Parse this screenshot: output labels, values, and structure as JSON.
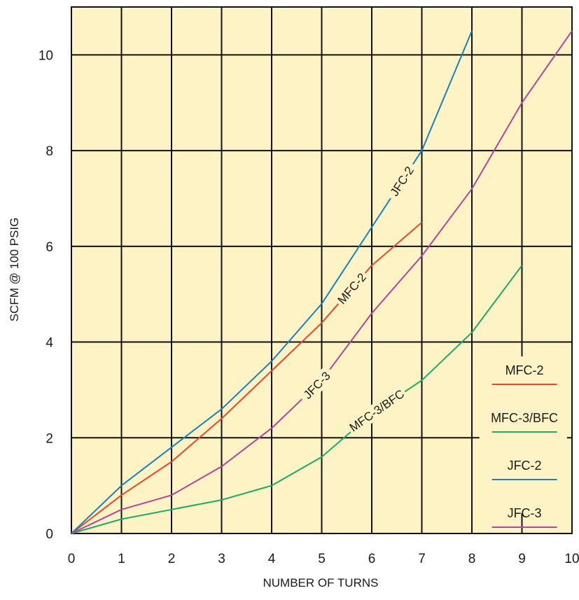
{
  "chart_data": {
    "type": "line",
    "title": "",
    "xlabel": "NUMBER OF TURNS",
    "ylabel": "SCFM @ 100 PSIG",
    "xlim": [
      0,
      10
    ],
    "ylim": [
      0,
      11
    ],
    "x_ticks": [
      "0",
      "1",
      "2",
      "3",
      "4",
      "5",
      "6",
      "7",
      "8",
      "9",
      "10"
    ],
    "y_ticks": [
      "0",
      "2",
      "4",
      "6",
      "8",
      "10"
    ],
    "grid": true,
    "background_color": "#fdf3c4",
    "series": [
      {
        "name": "MFC-2",
        "color": "#e8472b",
        "points": [
          [
            0,
            0
          ],
          [
            1,
            0.8
          ],
          [
            2,
            1.5
          ],
          [
            3,
            2.4
          ],
          [
            4,
            3.4
          ],
          [
            5,
            4.4
          ],
          [
            6,
            5.6
          ],
          [
            7,
            6.5
          ]
        ],
        "label_at": 5.6
      },
      {
        "name": "MFC-3/BFC",
        "color": "#1aaa6a",
        "points": [
          [
            0,
            0
          ],
          [
            1,
            0.3
          ],
          [
            2,
            0.5
          ],
          [
            3,
            0.7
          ],
          [
            4,
            1.0
          ],
          [
            5,
            1.6
          ],
          [
            6,
            2.5
          ],
          [
            7,
            3.2
          ],
          [
            8,
            4.2
          ],
          [
            9,
            5.6
          ]
        ],
        "label_at": 6.1
      },
      {
        "name": "JFC-2",
        "color": "#1a7fc0",
        "points": [
          [
            0,
            0
          ],
          [
            1,
            1.0
          ],
          [
            2,
            1.8
          ],
          [
            3,
            2.6
          ],
          [
            4,
            3.6
          ],
          [
            5,
            4.8
          ],
          [
            6,
            6.4
          ],
          [
            7,
            8.0
          ],
          [
            8,
            10.5
          ]
        ],
        "label_at": 6.6
      },
      {
        "name": "JFC-3",
        "color": "#b5449a",
        "points": [
          [
            0,
            0
          ],
          [
            1,
            0.5
          ],
          [
            2,
            0.8
          ],
          [
            3,
            1.4
          ],
          [
            4,
            2.2
          ],
          [
            5,
            3.2
          ],
          [
            6,
            4.6
          ],
          [
            7,
            5.8
          ],
          [
            8,
            7.2
          ],
          [
            9,
            9.0
          ],
          [
            10,
            10.5
          ]
        ],
        "label_at": 4.9
      }
    ],
    "legend": {
      "placement": "lower-right",
      "entries": [
        "MFC-2",
        "MFC-3/BFC",
        "JFC-2",
        "JFC-3"
      ]
    }
  }
}
